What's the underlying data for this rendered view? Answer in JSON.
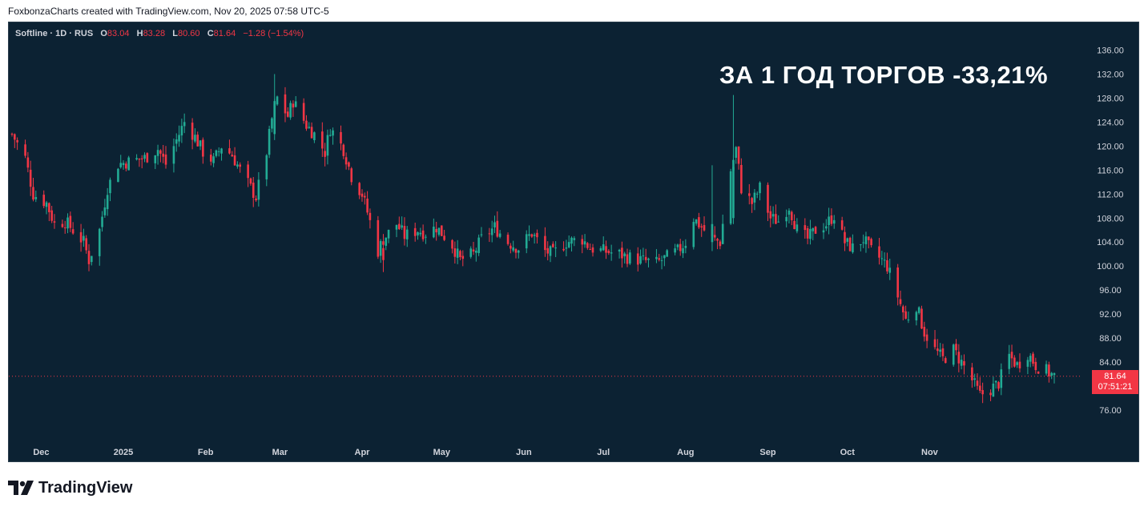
{
  "header": {
    "credit": "FoxbonzaCharts created with TradingView.com, Nov 20, 2025 07:58 UTC-5"
  },
  "legend": {
    "symbol": "Softline · 1D · RUS",
    "o_label": "O",
    "o_value": "83.04",
    "h_label": "H",
    "h_value": "83.28",
    "l_label": "L",
    "l_value": "80.60",
    "c_label": "C",
    "c_value": "81.64",
    "change": "−1.28 (−1.54%)"
  },
  "annotation": "ЗА 1 ГОД ТОРГОВ -33,21%",
  "last_price": {
    "price": "81.64",
    "countdown": "07:51:21"
  },
  "footer": {
    "brand": "TradingView"
  },
  "colors": {
    "background": "#0c2233",
    "up": "#22ab94",
    "down": "#f23645",
    "axis_text": "#d1d4dc"
  },
  "chart_data": {
    "type": "candlestick",
    "interval": "1D",
    "ylim": [
      72,
      138
    ],
    "y_ticks": [
      "76.00",
      "80.00",
      "84.00",
      "88.00",
      "92.00",
      "96.00",
      "100.00",
      "104.00",
      "108.00",
      "112.00",
      "116.00",
      "120.00",
      "124.00",
      "128.00",
      "132.00",
      "136.00"
    ],
    "x_ticks": [
      {
        "label": "Dec",
        "date": "2024-12-01"
      },
      {
        "label": "2025",
        "date": "2025-01-01"
      },
      {
        "label": "Feb",
        "date": "2025-02-01"
      },
      {
        "label": "Mar",
        "date": "2025-03-01"
      },
      {
        "label": "Apr",
        "date": "2025-04-01"
      },
      {
        "label": "May",
        "date": "2025-05-01"
      },
      {
        "label": "Jun",
        "date": "2025-06-01"
      },
      {
        "label": "Jul",
        "date": "2025-07-01"
      },
      {
        "label": "Aug",
        "date": "2025-08-01"
      },
      {
        "label": "Sep",
        "date": "2025-09-01"
      },
      {
        "label": "Oct",
        "date": "2025-10-01"
      },
      {
        "label": "Nov",
        "date": "2025-11-01"
      }
    ],
    "last_price_line": 81.64,
    "series_close": [
      {
        "date": "2024-11-20",
        "close": 122.0
      },
      {
        "date": "2024-11-25",
        "close": 118.0
      },
      {
        "date": "2024-11-28",
        "close": 112.0
      },
      {
        "date": "2024-12-03",
        "close": 110.5
      },
      {
        "date": "2024-12-06",
        "close": 107.0
      },
      {
        "date": "2024-12-10",
        "close": 107.5
      },
      {
        "date": "2024-12-13",
        "close": 106.0
      },
      {
        "date": "2024-12-17",
        "close": 104.0
      },
      {
        "date": "2024-12-19",
        "close": 101.0
      },
      {
        "date": "2024-12-23",
        "close": 106.0
      },
      {
        "date": "2024-12-26",
        "close": 113.0
      },
      {
        "date": "2024-12-30",
        "close": 117.0
      },
      {
        "date": "2025-01-09",
        "close": 118.0
      },
      {
        "date": "2025-01-14",
        "close": 119.5
      },
      {
        "date": "2025-01-17",
        "close": 117.0
      },
      {
        "date": "2025-01-21",
        "close": 121.0
      },
      {
        "date": "2025-01-24",
        "close": 124.0
      },
      {
        "date": "2025-01-28",
        "close": 121.5
      },
      {
        "date": "2025-01-31",
        "close": 119.0
      },
      {
        "date": "2025-02-04",
        "close": 117.5
      },
      {
        "date": "2025-02-07",
        "close": 120.0
      },
      {
        "date": "2025-02-11",
        "close": 118.5
      },
      {
        "date": "2025-02-14",
        "close": 116.0
      },
      {
        "date": "2025-02-18",
        "close": 113.0
      },
      {
        "date": "2025-02-20",
        "close": 111.5
      },
      {
        "date": "2025-02-24",
        "close": 119.0
      },
      {
        "date": "2025-02-26",
        "close": 124.5
      },
      {
        "date": "2025-02-28",
        "close": 128.0
      },
      {
        "date": "2025-03-04",
        "close": 125.0
      },
      {
        "date": "2025-03-06",
        "close": 127.5
      },
      {
        "date": "2025-03-11",
        "close": 123.5
      },
      {
        "date": "2025-03-14",
        "close": 122.0
      },
      {
        "date": "2025-03-18",
        "close": 119.0
      },
      {
        "date": "2025-03-20",
        "close": 123.0
      },
      {
        "date": "2025-03-25",
        "close": 119.5
      },
      {
        "date": "2025-03-28",
        "close": 115.0
      },
      {
        "date": "2025-04-01",
        "close": 112.0
      },
      {
        "date": "2025-04-03",
        "close": 109.0
      },
      {
        "date": "2025-04-07",
        "close": 102.5
      },
      {
        "date": "2025-04-09",
        "close": 104.5
      },
      {
        "date": "2025-04-14",
        "close": 107.0
      },
      {
        "date": "2025-04-17",
        "close": 105.0
      },
      {
        "date": "2025-04-22",
        "close": 106.0
      },
      {
        "date": "2025-04-25",
        "close": 105.5
      },
      {
        "date": "2025-04-29",
        "close": 106.5
      },
      {
        "date": "2025-05-05",
        "close": 103.5
      },
      {
        "date": "2025-05-08",
        "close": 101.0
      },
      {
        "date": "2025-05-13",
        "close": 102.0
      },
      {
        "date": "2025-05-16",
        "close": 104.5
      },
      {
        "date": "2025-05-21",
        "close": 106.5
      },
      {
        "date": "2025-05-26",
        "close": 104.0
      },
      {
        "date": "2025-05-30",
        "close": 103.0
      },
      {
        "date": "2025-06-04",
        "close": 105.5
      },
      {
        "date": "2025-06-09",
        "close": 102.5
      },
      {
        "date": "2025-06-12",
        "close": 102.0
      },
      {
        "date": "2025-06-17",
        "close": 104.0
      },
      {
        "date": "2025-06-23",
        "close": 104.5
      },
      {
        "date": "2025-06-26",
        "close": 103.0
      },
      {
        "date": "2025-07-01",
        "close": 102.5
      },
      {
        "date": "2025-07-07",
        "close": 102.0
      },
      {
        "date": "2025-07-10",
        "close": 101.5
      },
      {
        "date": "2025-07-15",
        "close": 101.0
      },
      {
        "date": "2025-07-21",
        "close": 100.5
      },
      {
        "date": "2025-07-25",
        "close": 101.5
      },
      {
        "date": "2025-07-29",
        "close": 102.5
      },
      {
        "date": "2025-08-01",
        "close": 104.0
      },
      {
        "date": "2025-08-04",
        "close": 108.0
      },
      {
        "date": "2025-08-07",
        "close": 106.5
      },
      {
        "date": "2025-08-11",
        "close": 104.5
      },
      {
        "date": "2025-08-14",
        "close": 104.0
      },
      {
        "date": "2025-08-18",
        "close": 116.0
      },
      {
        "date": "2025-08-20",
        "close": 119.5
      },
      {
        "date": "2025-08-22",
        "close": 113.0
      },
      {
        "date": "2025-08-26",
        "close": 110.5
      },
      {
        "date": "2025-08-29",
        "close": 113.0
      },
      {
        "date": "2025-09-02",
        "close": 108.0
      },
      {
        "date": "2025-09-05",
        "close": 107.5
      },
      {
        "date": "2025-09-09",
        "close": 110.0
      },
      {
        "date": "2025-09-12",
        "close": 106.0
      },
      {
        "date": "2025-09-16",
        "close": 104.5
      },
      {
        "date": "2025-09-19",
        "close": 106.0
      },
      {
        "date": "2025-09-23",
        "close": 107.0
      },
      {
        "date": "2025-09-26",
        "close": 108.5
      },
      {
        "date": "2025-09-30",
        "close": 104.0
      },
      {
        "date": "2025-10-03",
        "close": 103.0
      },
      {
        "date": "2025-10-07",
        "close": 104.5
      },
      {
        "date": "2025-10-10",
        "close": 102.5
      },
      {
        "date": "2025-10-14",
        "close": 101.0
      },
      {
        "date": "2025-10-16",
        "close": 100.0
      },
      {
        "date": "2025-10-20",
        "close": 95.0
      },
      {
        "date": "2025-10-23",
        "close": 91.0
      },
      {
        "date": "2025-10-27",
        "close": 93.5
      },
      {
        "date": "2025-10-30",
        "close": 89.0
      },
      {
        "date": "2025-11-03",
        "close": 86.0
      },
      {
        "date": "2025-11-06",
        "close": 84.5
      },
      {
        "date": "2025-11-10",
        "close": 86.0
      },
      {
        "date": "2025-11-13",
        "close": 84.0
      },
      {
        "date": "2025-11-17",
        "close": 81.0
      },
      {
        "date": "2025-11-20",
        "close": 78.5
      },
      {
        "date": "2025-11-24",
        "close": 79.5
      },
      {
        "date": "2025-11-27",
        "close": 80.5
      },
      {
        "date": "2025-12-01",
        "close": 85.0
      },
      {
        "date": "2025-12-04",
        "close": 83.5
      },
      {
        "date": "2025-12-08",
        "close": 85.5
      },
      {
        "date": "2025-12-11",
        "close": 83.5
      },
      {
        "date": "2025-12-15",
        "close": 82.5
      },
      {
        "date": "2025-12-18",
        "close": 81.64
      }
    ]
  }
}
